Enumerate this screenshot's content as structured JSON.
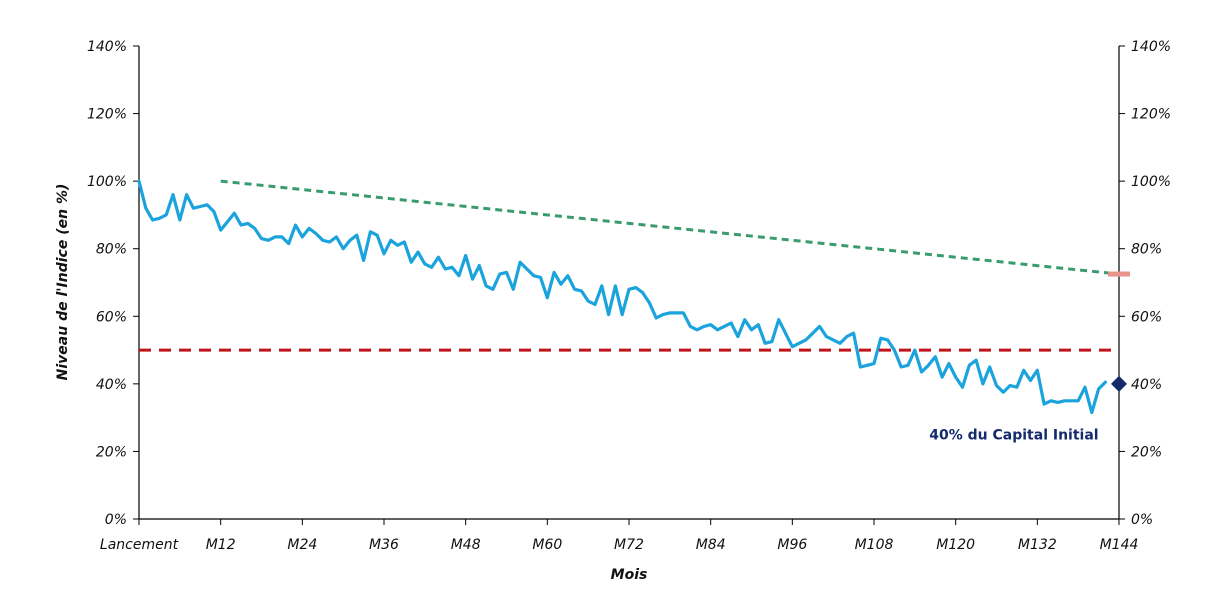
{
  "chart_data": {
    "type": "line",
    "xlabel": "Mois",
    "ylabel": "Niveau de l'Indice (en %)",
    "x_ticks": [
      "Lancement",
      "M12",
      "M24",
      "M36",
      "M48",
      "M60",
      "M72",
      "M84",
      "M96",
      "M108",
      "M120",
      "M132",
      "M144"
    ],
    "xlim": [
      0,
      144
    ],
    "ylim": [
      0,
      140
    ],
    "y_ticks": [
      0,
      20,
      40,
      60,
      80,
      100,
      120,
      140
    ],
    "y_tick_suffix": "%",
    "grid": false,
    "series": [
      {
        "style": "solid",
        "color": "#1aa3dc",
        "values": [
          [
            0,
            100
          ],
          [
            1,
            92
          ],
          [
            2,
            88.5
          ],
          [
            3,
            89
          ],
          [
            4,
            90
          ],
          [
            5,
            96
          ],
          [
            6,
            88.5
          ],
          [
            7,
            96
          ],
          [
            8,
            92
          ],
          [
            9,
            92.5
          ],
          [
            10,
            93
          ],
          [
            11,
            91
          ],
          [
            12,
            85.5
          ],
          [
            13,
            88
          ],
          [
            14,
            90.5
          ],
          [
            15,
            87
          ],
          [
            16,
            87.5
          ],
          [
            17,
            86
          ],
          [
            18,
            83
          ],
          [
            19,
            82.5
          ],
          [
            20,
            83.5
          ],
          [
            21,
            83.5
          ],
          [
            22,
            81.5
          ],
          [
            23,
            87
          ],
          [
            24,
            83.5
          ],
          [
            25,
            86
          ],
          [
            26,
            84.5
          ],
          [
            27,
            82.5
          ],
          [
            28,
            82
          ],
          [
            29,
            83.5
          ],
          [
            30,
            80
          ],
          [
            31,
            82.5
          ],
          [
            32,
            84
          ],
          [
            33,
            76.5
          ],
          [
            34,
            85
          ],
          [
            35,
            84
          ],
          [
            36,
            78.5
          ],
          [
            37,
            82.5
          ],
          [
            38,
            81
          ],
          [
            39,
            82
          ],
          [
            40,
            76
          ],
          [
            41,
            79
          ],
          [
            42,
            75.5
          ],
          [
            43,
            74.5
          ],
          [
            44,
            77.5
          ],
          [
            45,
            74
          ],
          [
            46,
            74.5
          ],
          [
            47,
            72
          ],
          [
            48,
            78
          ],
          [
            49,
            71
          ],
          [
            50,
            75
          ],
          [
            51,
            69
          ],
          [
            52,
            68
          ],
          [
            53,
            72.5
          ],
          [
            54,
            73
          ],
          [
            55,
            68
          ],
          [
            56,
            76
          ],
          [
            57,
            74
          ],
          [
            58,
            72
          ],
          [
            59,
            71.5
          ],
          [
            60,
            65.5
          ],
          [
            61,
            73
          ],
          [
            62,
            69.5
          ],
          [
            63,
            72
          ],
          [
            64,
            68
          ],
          [
            65,
            67.5
          ],
          [
            66,
            64.5
          ],
          [
            67,
            63.5
          ],
          [
            68,
            69
          ],
          [
            69,
            60.5
          ],
          [
            70,
            69
          ],
          [
            71,
            60.5
          ],
          [
            72,
            68
          ],
          [
            73,
            68.5
          ],
          [
            74,
            67
          ],
          [
            75,
            64
          ],
          [
            76,
            59.5
          ],
          [
            77,
            60.5
          ],
          [
            78,
            61
          ],
          [
            79,
            61
          ],
          [
            80,
            61
          ],
          [
            81,
            57
          ],
          [
            82,
            56
          ],
          [
            83,
            57
          ],
          [
            84,
            57.5
          ],
          [
            85,
            56
          ],
          [
            86,
            57
          ],
          [
            87,
            58
          ],
          [
            88,
            54
          ],
          [
            89,
            59
          ],
          [
            90,
            56
          ],
          [
            91,
            57.5
          ],
          [
            92,
            52
          ],
          [
            93,
            52.5
          ],
          [
            94,
            59
          ],
          [
            95,
            55
          ],
          [
            96,
            51
          ],
          [
            97,
            52
          ],
          [
            98,
            53
          ],
          [
            99,
            55
          ],
          [
            100,
            57
          ],
          [
            101,
            54
          ],
          [
            102,
            53
          ],
          [
            103,
            52
          ],
          [
            104,
            54
          ],
          [
            105,
            55
          ],
          [
            106,
            45
          ],
          [
            107,
            45.5
          ],
          [
            108,
            46
          ],
          [
            109,
            53.5
          ],
          [
            110,
            53
          ],
          [
            111,
            50
          ],
          [
            112,
            45
          ],
          [
            113,
            45.5
          ],
          [
            114,
            50
          ],
          [
            115,
            43.5
          ],
          [
            116,
            45.5
          ],
          [
            117,
            48
          ],
          [
            118,
            42
          ],
          [
            119,
            46
          ],
          [
            120,
            42
          ],
          [
            121,
            39
          ],
          [
            122,
            45.5
          ],
          [
            123,
            47
          ],
          [
            124,
            40
          ],
          [
            125,
            45
          ],
          [
            126,
            39.5
          ],
          [
            127,
            37.5
          ],
          [
            128,
            39.5
          ],
          [
            129,
            39
          ],
          [
            130,
            44
          ],
          [
            131,
            41
          ],
          [
            132,
            44
          ],
          [
            133,
            34
          ],
          [
            134,
            35
          ],
          [
            135,
            34.5
          ],
          [
            136,
            35
          ],
          [
            137,
            35
          ],
          [
            138,
            35
          ],
          [
            139,
            39
          ],
          [
            140,
            31.5
          ],
          [
            141,
            38.5
          ],
          [
            142,
            40.5
          ]
        ]
      },
      {
        "style": "dashed",
        "color": "#3a9b6f",
        "values": [
          [
            12,
            100
          ],
          [
            144,
            72.5
          ]
        ]
      },
      {
        "style": "dashed",
        "color": "#c0141b",
        "values": [
          [
            0,
            50
          ],
          [
            144,
            50
          ]
        ]
      }
    ],
    "markers": [
      {
        "x": 144,
        "y": 72.5,
        "shape": "bar",
        "color": "#e8948c"
      },
      {
        "x": 144,
        "y": 40,
        "shape": "diamond",
        "color": "#132a6b"
      }
    ],
    "annotations": [
      {
        "text": "40% du Capital Initial",
        "x": 141,
        "y": 25,
        "color": "#132a6b"
      }
    ]
  }
}
